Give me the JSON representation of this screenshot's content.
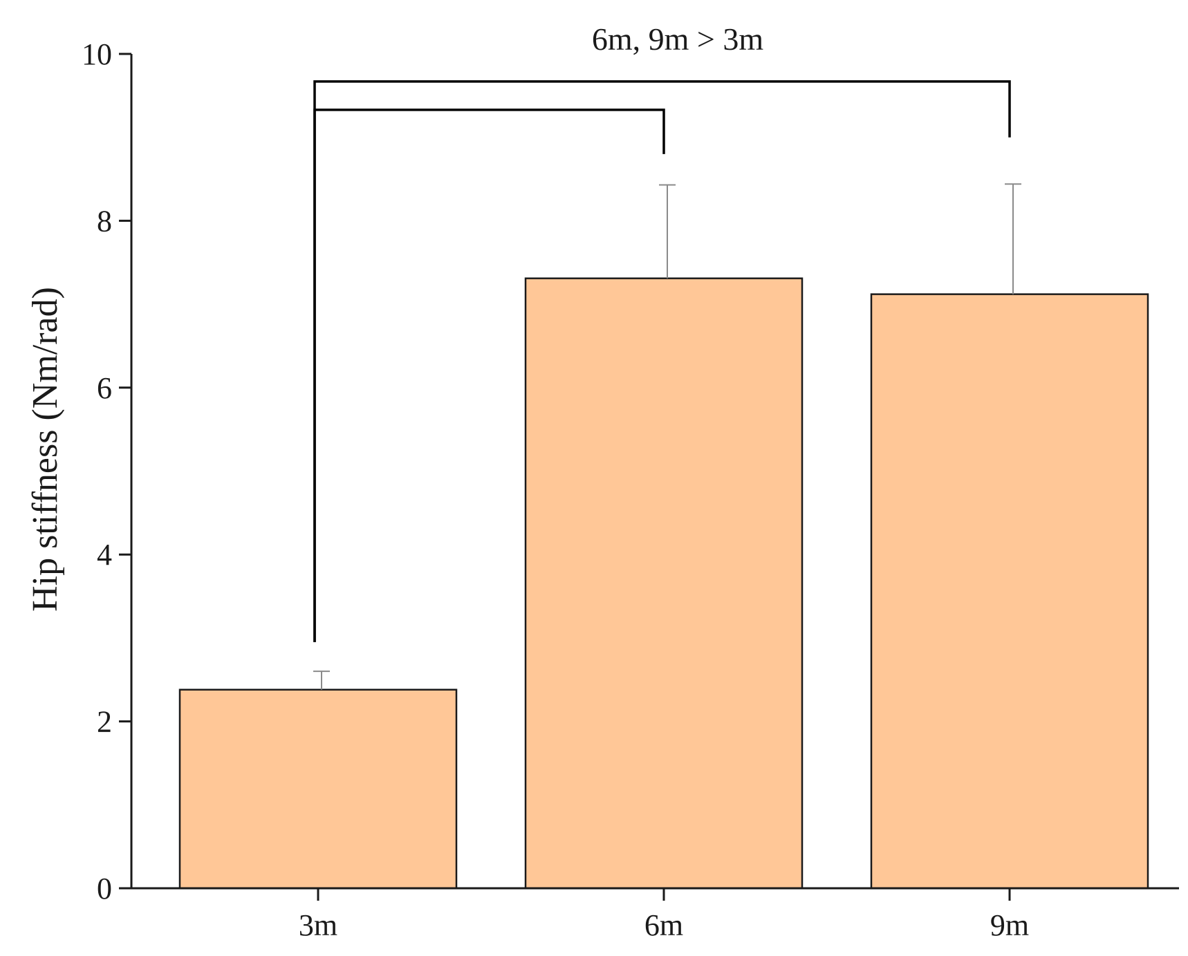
{
  "chart_data": {
    "type": "bar",
    "categories": [
      "3m",
      "6m",
      "9m"
    ],
    "values": [
      2.38,
      7.31,
      7.12
    ],
    "error_upper": [
      2.6,
      8.43,
      8.44
    ],
    "ylabel": "Hip stiffness (Nm/rad)",
    "xlabel": "",
    "ylim": [
      0,
      10
    ],
    "yticks": [
      "0",
      "2",
      "4",
      "6",
      "8",
      "10"
    ],
    "annotation": "6m, 9m > 3m",
    "brackets": [
      {
        "from": "3m",
        "to": "6m",
        "y": 9.33,
        "left_end": 2.95,
        "right_end": 8.8
      },
      {
        "from": "3m",
        "to": "9m",
        "y": 9.67,
        "left_end": 2.95,
        "right_end": 9.0
      }
    ],
    "bar_color": "#FFC797",
    "grid": false,
    "legend": "none"
  }
}
